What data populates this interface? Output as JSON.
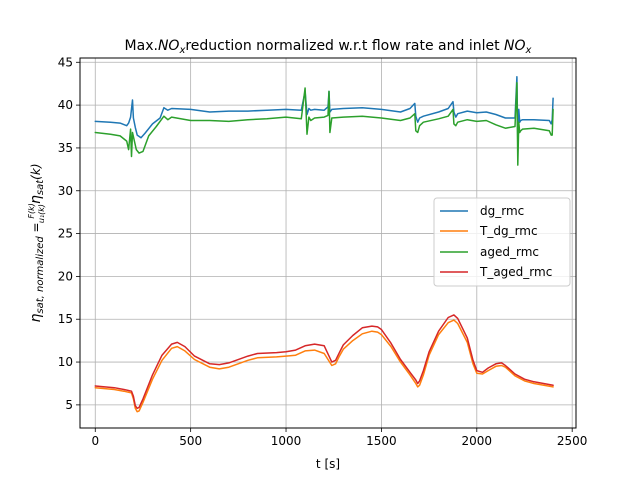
{
  "chart_data": {
    "type": "line",
    "title": {
      "prefix": "Max.",
      "nox_main": "NO",
      "nox_sub": "x",
      "middle": "reduction normalized w.r.t flow rate and inlet ",
      "nox2_main": "NO",
      "nox2_sub": "x"
    },
    "xlabel": "t [s]",
    "ylabel": {
      "eta": "η",
      "sub": "sat, normalized",
      "eq": " = ",
      "frac_num": "F(k)",
      "frac_den": "u₁(k)",
      "eta2": "η",
      "sub2": "sat",
      "tail": "(k)"
    },
    "xlim": [
      -80,
      2520
    ],
    "ylim": [
      2.3,
      45.5
    ],
    "x_ticks": [
      0,
      500,
      1000,
      1500,
      2000,
      2500
    ],
    "y_ticks": [
      5,
      10,
      15,
      20,
      25,
      30,
      35,
      40,
      45
    ],
    "grid": true,
    "legend_position": "center-right",
    "series": [
      {
        "name": "dg_rmc",
        "color": "#1f77b4",
        "x": [
          0,
          80,
          130,
          165,
          175,
          185,
          195,
          200,
          210,
          220,
          240,
          260,
          300,
          340,
          360,
          380,
          400,
          500,
          600,
          700,
          800,
          900,
          1000,
          1080,
          1100,
          1110,
          1120,
          1130,
          1150,
          1200,
          1220,
          1225,
          1230,
          1240,
          1300,
          1400,
          1500,
          1600,
          1650,
          1675,
          1680,
          1690,
          1700,
          1720,
          1800,
          1850,
          1875,
          1880,
          1890,
          1900,
          1950,
          2000,
          2050,
          2100,
          2150,
          2200,
          2210,
          2215,
          2220,
          2225,
          2230,
          2240,
          2300,
          2380,
          2390,
          2395,
          2400
        ],
        "values": [
          38.1,
          38.0,
          37.9,
          37.6,
          37.9,
          38.6,
          40.6,
          38.5,
          37.4,
          36.5,
          36.2,
          36.7,
          37.8,
          38.5,
          39.7,
          39.4,
          39.6,
          39.5,
          39.2,
          39.3,
          39.3,
          39.4,
          39.5,
          39.4,
          41.6,
          38.9,
          39.6,
          39.4,
          39.5,
          39.4,
          39.8,
          41.6,
          39.2,
          39.5,
          39.6,
          39.7,
          39.5,
          39.2,
          39.6,
          40.2,
          38.7,
          38.0,
          38.5,
          38.7,
          39.2,
          39.6,
          40.4,
          39.2,
          38.6,
          39.0,
          39.3,
          39.1,
          39.2,
          38.9,
          38.5,
          38.5,
          43.3,
          35.4,
          39.5,
          38.0,
          38.2,
          38.3,
          38.3,
          38.2,
          37.8,
          38.3,
          40.8
        ]
      },
      {
        "name": "T_dg_rmc",
        "color": "#ff7f0e",
        "x": [
          0,
          50,
          100,
          150,
          190,
          200,
          210,
          220,
          230,
          250,
          300,
          350,
          400,
          430,
          470,
          520,
          600,
          650,
          700,
          800,
          850,
          950,
          1000,
          1050,
          1100,
          1150,
          1200,
          1240,
          1260,
          1280,
          1300,
          1350,
          1400,
          1450,
          1480,
          1500,
          1550,
          1600,
          1650,
          1680,
          1690,
          1700,
          1720,
          1750,
          1800,
          1850,
          1880,
          1900,
          1950,
          1980,
          2000,
          2030,
          2060,
          2100,
          2130,
          2150,
          2200,
          2250,
          2300,
          2400
        ],
        "values": [
          7.0,
          6.9,
          6.8,
          6.6,
          6.4,
          5.7,
          4.6,
          4.2,
          4.3,
          5.3,
          8.0,
          10.2,
          11.6,
          11.8,
          11.3,
          10.3,
          9.4,
          9.2,
          9.4,
          10.2,
          10.5,
          10.6,
          10.7,
          10.8,
          11.3,
          11.4,
          11.0,
          9.6,
          9.8,
          10.7,
          11.5,
          12.5,
          13.3,
          13.6,
          13.5,
          13.2,
          11.8,
          10.0,
          8.5,
          7.5,
          7.1,
          7.3,
          8.5,
          10.8,
          13.2,
          14.6,
          14.9,
          14.5,
          12.3,
          9.8,
          8.7,
          8.6,
          9.0,
          9.5,
          9.6,
          9.4,
          8.4,
          7.8,
          7.5,
          7.1
        ]
      },
      {
        "name": "aged_rmc",
        "color": "#2ca02c",
        "x": [
          0,
          80,
          130,
          165,
          175,
          185,
          190,
          195,
          205,
          215,
          230,
          250,
          280,
          320,
          360,
          380,
          400,
          500,
          600,
          700,
          800,
          900,
          1000,
          1080,
          1100,
          1110,
          1120,
          1130,
          1150,
          1200,
          1220,
          1225,
          1230,
          1240,
          1300,
          1400,
          1500,
          1600,
          1650,
          1675,
          1680,
          1690,
          1700,
          1720,
          1800,
          1850,
          1875,
          1880,
          1890,
          1900,
          1950,
          2000,
          2050,
          2100,
          2150,
          2200,
          2210,
          2215,
          2220,
          2225,
          2230,
          2240,
          2300,
          2380,
          2390,
          2395,
          2400
        ],
        "values": [
          36.8,
          36.6,
          36.4,
          35.8,
          34.8,
          37.2,
          34.0,
          36.8,
          35.8,
          34.8,
          34.4,
          34.6,
          36.4,
          37.5,
          38.7,
          38.3,
          38.6,
          38.2,
          38.2,
          38.1,
          38.3,
          38.4,
          38.6,
          38.4,
          42.0,
          36.6,
          38.6,
          38.2,
          38.5,
          38.6,
          38.8,
          41.6,
          36.8,
          38.5,
          38.6,
          38.7,
          38.5,
          38.2,
          38.5,
          39.0,
          37.0,
          36.8,
          37.6,
          38.0,
          38.4,
          38.7,
          39.5,
          37.8,
          37.6,
          38.0,
          38.3,
          38.1,
          38.2,
          37.7,
          37.3,
          37.5,
          42.6,
          33.0,
          38.0,
          36.8,
          37.0,
          37.2,
          37.3,
          37.0,
          36.5,
          36.5,
          39.5
        ]
      },
      {
        "name": "T_aged_rmc",
        "color": "#d62728",
        "x": [
          0,
          50,
          100,
          150,
          190,
          200,
          210,
          220,
          230,
          250,
          300,
          350,
          400,
          430,
          470,
          520,
          600,
          650,
          700,
          800,
          850,
          950,
          1000,
          1050,
          1100,
          1150,
          1200,
          1240,
          1260,
          1280,
          1300,
          1350,
          1400,
          1450,
          1480,
          1500,
          1550,
          1600,
          1650,
          1680,
          1690,
          1700,
          1720,
          1750,
          1800,
          1850,
          1880,
          1900,
          1950,
          1980,
          2000,
          2030,
          2060,
          2100,
          2130,
          2150,
          2200,
          2250,
          2300,
          2400
        ],
        "values": [
          7.2,
          7.1,
          7.0,
          6.8,
          6.6,
          6.0,
          4.9,
          4.6,
          4.7,
          5.7,
          8.5,
          10.8,
          12.1,
          12.3,
          11.8,
          10.7,
          9.8,
          9.7,
          9.9,
          10.7,
          11.0,
          11.1,
          11.2,
          11.4,
          11.9,
          12.1,
          11.9,
          10.0,
          10.2,
          11.1,
          12.0,
          13.1,
          14.0,
          14.2,
          14.1,
          13.8,
          12.2,
          10.3,
          8.8,
          7.9,
          7.5,
          7.8,
          9.0,
          11.2,
          13.6,
          15.2,
          15.5,
          15.1,
          12.8,
          10.2,
          9.0,
          8.8,
          9.3,
          9.8,
          9.9,
          9.6,
          8.6,
          8.0,
          7.7,
          7.3
        ]
      }
    ]
  }
}
